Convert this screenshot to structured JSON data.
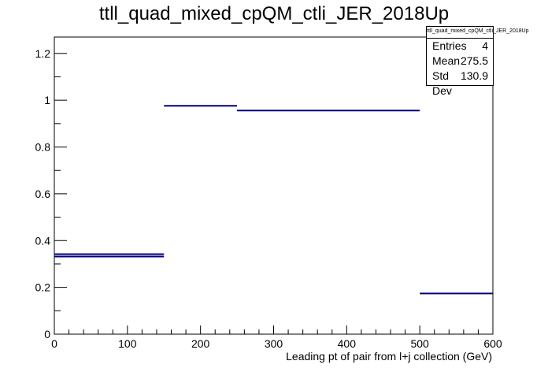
{
  "chart_data": {
    "type": "histogram",
    "title": "ttll_quad_mixed_cpQM_ctli_JER_2018Up",
    "xlabel": "Leading pt of pair from l+j collection (GeV)",
    "ylabel": "",
    "xlim": [
      0,
      600
    ],
    "ylim": [
      0,
      1.27
    ],
    "x_ticks": [
      "0",
      "100",
      "200",
      "300",
      "400",
      "500",
      "600"
    ],
    "y_ticks": [
      "0",
      "0.2",
      "0.4",
      "0.6",
      "0.8",
      "1",
      "1.2"
    ],
    "y_tick_values": [
      0,
      0.2,
      0.4,
      0.6,
      0.8,
      1.0,
      1.2
    ],
    "bins": [
      {
        "xlow": 0,
        "xhigh": 150,
        "y": 0.342
      },
      {
        "xlow": 0,
        "xhigh": 150,
        "y": 0.332
      },
      {
        "xlow": 150,
        "xhigh": 250,
        "y": 0.976
      },
      {
        "xlow": 250,
        "xhigh": 500,
        "y": 0.956
      },
      {
        "xlow": 500,
        "xhigh": 600,
        "y": 0.174
      }
    ],
    "line_color": "#000080",
    "stats": {
      "name": "ttll_quad_mixed_cpQM_ctli_JER_2018Up",
      "entries_label": "Entries",
      "entries": "4",
      "mean_label": "Mean",
      "mean": "275.5",
      "stddev_label": "Std Dev",
      "stddev": "130.9"
    }
  }
}
